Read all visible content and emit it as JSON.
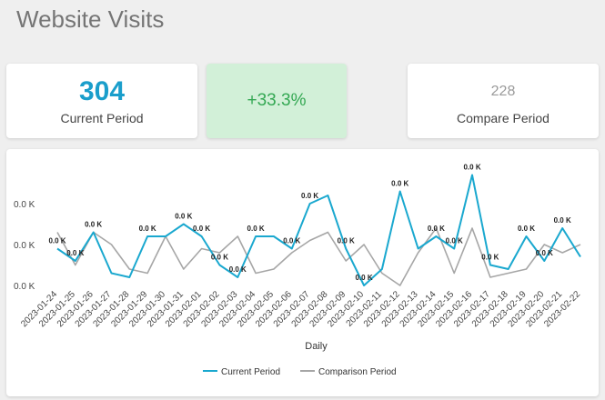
{
  "title": "Website Visits",
  "kpis": {
    "current_value": "304",
    "current_label": "Current Period",
    "change_value": "+33.3%",
    "compare_value": "228",
    "compare_label": "Compare Period"
  },
  "colors": {
    "current_series": "#1aa8cf",
    "comparison_series": "#a6a6a6",
    "kpi_current": "#1a9ecb",
    "kpi_change": "#34a853",
    "kpi_change_bg": "#d2f0d8"
  },
  "chart_data": {
    "type": "line",
    "xlabel": "Daily",
    "ylabel": "",
    "ylim": [
      0,
      16
    ],
    "y_tick_values": [
      0,
      5,
      10
    ],
    "y_tick_labels": [
      "0.0 K",
      "0.0 K",
      "0.0 K"
    ],
    "grid": false,
    "legend_position": "bottom-center",
    "categories": [
      "2023-01-24",
      "2023-01-25",
      "2023-01-26",
      "2023-01-27",
      "2023-01-28",
      "2023-01-29",
      "2023-01-30",
      "2023-01-31",
      "2023-02-01",
      "2023-02-02",
      "2023-02-03",
      "2023-02-04",
      "2023-02-05",
      "2023-02-06",
      "2023-02-07",
      "2023-02-08",
      "2023-02-09",
      "2023-02-10",
      "2023-02-11",
      "2023-02-12",
      "2023-02-13",
      "2023-02-14",
      "2023-02-15",
      "2023-02-16",
      "2023-02-17",
      "2023-02-18",
      "2023-02-19",
      "2023-02-20",
      "2023-02-21",
      "2023-02-22"
    ],
    "series": [
      {
        "name": "Current Period",
        "values": [
          4.5,
          3,
          6.5,
          1.5,
          1,
          6,
          6,
          7.5,
          6,
          2.5,
          1,
          6,
          6,
          4.5,
          10,
          11,
          4.5,
          0,
          2,
          11.5,
          4.5,
          6,
          4.5,
          13.5,
          2.5,
          2,
          6,
          3,
          7,
          3.5
        ],
        "data_labels": [
          "0.0 K",
          "0.0 K",
          "0.0 K",
          "",
          "",
          "0.0 K",
          "",
          "0.0 K",
          "0.0 K",
          "0.0 K",
          "0.0 K",
          "0.0 K",
          "",
          "0.0 K",
          "0.0 K",
          "",
          "0.0 K",
          "0.0 K",
          "",
          "0.0 K",
          "",
          "0.0 K",
          "0.0 K",
          "0.0 K",
          "0.0 K",
          "",
          "0.0 K",
          "0.0 K",
          "0.0 K",
          ""
        ]
      },
      {
        "name": "Comparison Period",
        "values": [
          6.5,
          2.5,
          6.5,
          5,
          2,
          1.5,
          6,
          2,
          4.5,
          4,
          6,
          1.5,
          2,
          4,
          5.5,
          6.5,
          3,
          5,
          1.5,
          0,
          4,
          7,
          1.5,
          7,
          1,
          1.5,
          2,
          5,
          4,
          5
        ],
        "data_labels": [
          "",
          "",
          "",
          "",
          "",
          "",
          "",
          "",
          "",
          "",
          "",
          "",
          "",
          "",
          "",
          "",
          "",
          "",
          "",
          "",
          "",
          "",
          "",
          "",
          "",
          "",
          "",
          "",
          "",
          ""
        ]
      }
    ]
  }
}
